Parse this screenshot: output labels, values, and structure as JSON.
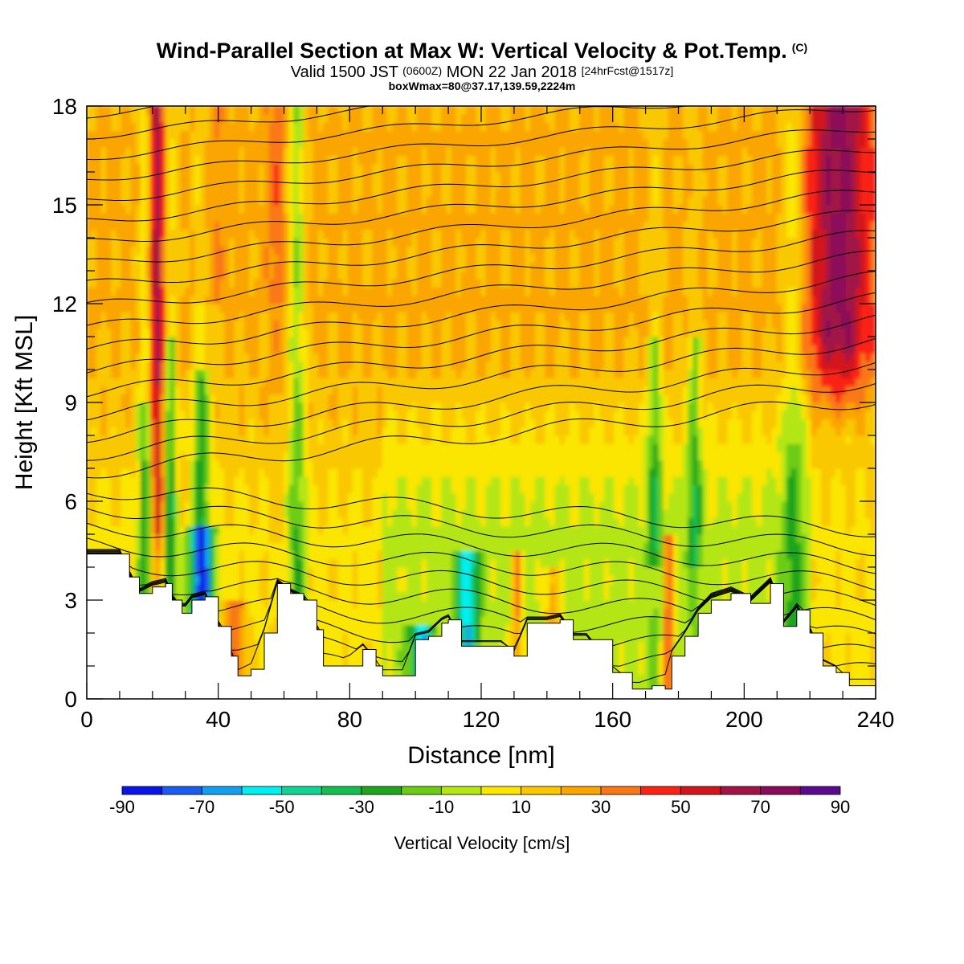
{
  "title": {
    "main": "Wind-Parallel Section at Max W: Vertical Velocity & Pot.Temp.",
    "copyright": "(C)",
    "valid_prefix": "Valid 1500 JST",
    "valid_zulu": "(0600Z)",
    "valid_date": "MON 22 Jan 2018",
    "forecast": "[24hrFcst@1517z]",
    "box": "boxWmax=80@37.17,139.59,2224m"
  },
  "chart_data": {
    "type": "heatmap",
    "xlabel": "Distance [nm]",
    "ylabel": "Height [Kft MSL]",
    "xlim": [
      0,
      240
    ],
    "ylim": [
      0,
      18
    ],
    "x_ticks": [
      "0",
      "40",
      "80",
      "120",
      "160",
      "200",
      "240"
    ],
    "y_ticks": [
      "0",
      "3",
      "6",
      "9",
      "12",
      "15",
      "18"
    ],
    "colorbar": {
      "title": "Vertical Velocity [cm/s]",
      "labels": [
        "-90",
        "-70",
        "-50",
        "-30",
        "-10",
        "10",
        "30",
        "50",
        "70",
        "90"
      ],
      "levels": [
        -90,
        -80,
        -70,
        -60,
        -50,
        -40,
        -30,
        -20,
        -10,
        0,
        10,
        20,
        30,
        40,
        50,
        60,
        70,
        80,
        90
      ],
      "colors": [
        "#0a14e6",
        "#1a5cf0",
        "#14a0f0",
        "#00f0f0",
        "#10d496",
        "#14be50",
        "#1ea61e",
        "#6ccc14",
        "#b4e614",
        "#fae600",
        "#fac800",
        "#faa500",
        "#fa7814",
        "#fa2314",
        "#d2141e",
        "#a01446",
        "#8c0a5a",
        "#5a0a8c"
      ]
    },
    "terrain_kft": [
      [
        0,
        4.4
      ],
      [
        10,
        4.4
      ],
      [
        13,
        3.7
      ],
      [
        16,
        3.2
      ],
      [
        20,
        3.4
      ],
      [
        24,
        3.5
      ],
      [
        26,
        3.0
      ],
      [
        29,
        2.6
      ],
      [
        32,
        3.0
      ],
      [
        36,
        3.1
      ],
      [
        40,
        2.2
      ],
      [
        44,
        1.3
      ],
      [
        46,
        0.7
      ],
      [
        50,
        0.9
      ],
      [
        54,
        2.0
      ],
      [
        58,
        3.5
      ],
      [
        62,
        3.2
      ],
      [
        66,
        3.0
      ],
      [
        70,
        2.1
      ],
      [
        72,
        1.0
      ],
      [
        78,
        1.0
      ],
      [
        84,
        1.5
      ],
      [
        88,
        1.0
      ],
      [
        90,
        0.7
      ],
      [
        96,
        0.7
      ],
      [
        100,
        1.8
      ],
      [
        104,
        1.9
      ],
      [
        108,
        2.3
      ],
      [
        110,
        2.4
      ],
      [
        114,
        1.6
      ],
      [
        126,
        1.6
      ],
      [
        130,
        1.3
      ],
      [
        134,
        2.3
      ],
      [
        140,
        2.3
      ],
      [
        144,
        2.4
      ],
      [
        148,
        1.8
      ],
      [
        152,
        1.8
      ],
      [
        160,
        0.8
      ],
      [
        166,
        0.3
      ],
      [
        172,
        0.4
      ],
      [
        176,
        0.3
      ],
      [
        178,
        1.3
      ],
      [
        182,
        1.9
      ],
      [
        186,
        2.6
      ],
      [
        190,
        3.0
      ],
      [
        196,
        3.2
      ],
      [
        202,
        2.9
      ],
      [
        208,
        3.5
      ],
      [
        212,
        2.2
      ],
      [
        216,
        2.7
      ],
      [
        220,
        2.0
      ],
      [
        224,
        1.0
      ],
      [
        228,
        0.8
      ],
      [
        232,
        0.4
      ],
      [
        240,
        0.4
      ]
    ]
  }
}
